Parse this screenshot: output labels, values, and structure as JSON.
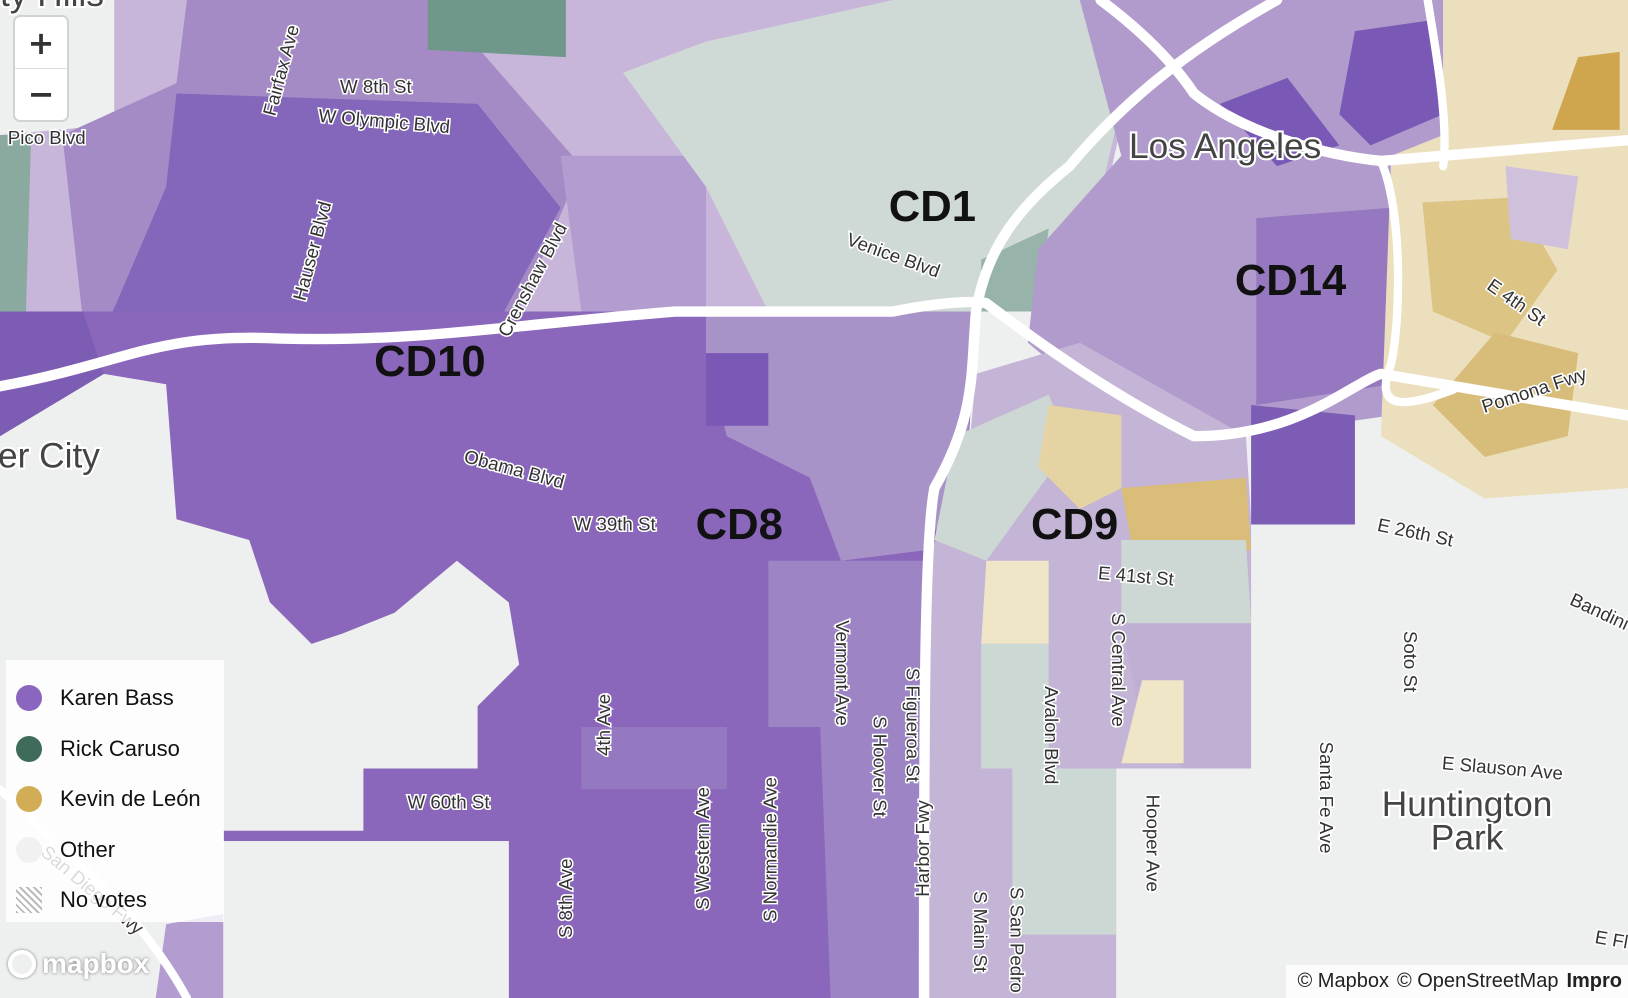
{
  "map": {
    "place_labels": [
      {
        "text": "ty Hills"
      },
      {
        "text": "Los Angeles"
      },
      {
        "text": "er City"
      },
      {
        "lines": [
          "Huntington",
          "Park"
        ]
      }
    ],
    "district_labels": [
      "CD1",
      "CD14",
      "CD10",
      "CD8",
      "CD9"
    ],
    "street_labels": [
      "W 8th St",
      "W Olympic Blvd",
      "Fairfax Ave",
      "Pico Blvd",
      "Hauser Blvd",
      "Crenshaw Blvd",
      "Venice Blvd",
      "Obama Blvd",
      "W 39th St",
      "W 60th St",
      "4th Ave",
      "S 8th Ave",
      "S Western Ave",
      "S Normandie Ave",
      "Vermont Ave",
      "S Hoover St",
      "S Figueroa St",
      "Harbor Fwy",
      "S Main St",
      "S San Pedro",
      "Avalon Blvd",
      "S Central Ave",
      "E 41st St",
      "Hooper Ave",
      "Santa Fe Ave",
      "Soto St",
      "E Slauson Ave",
      "E 26th St",
      "Bandini",
      "E 4th St",
      "Pomona Fwy",
      "E Fl",
      "San Diego Fwy"
    ]
  },
  "controls": {
    "zoom_in": "+",
    "zoom_out": "−"
  },
  "legend": {
    "items": [
      {
        "label": "Karen Bass",
        "color": "#8b66bf"
      },
      {
        "label": "Rick Caruso",
        "color": "#3f6b5b"
      },
      {
        "label": "Kevin de León",
        "color": "#d3ad55"
      },
      {
        "label": "Other",
        "color": "#f1f1f1"
      },
      {
        "label": "No votes",
        "color": "hatch"
      }
    ]
  },
  "attribution": {
    "logo": "mapbox",
    "mapbox": "© Mapbox",
    "osm": "© OpenStreetMap",
    "improve": "Impro"
  }
}
